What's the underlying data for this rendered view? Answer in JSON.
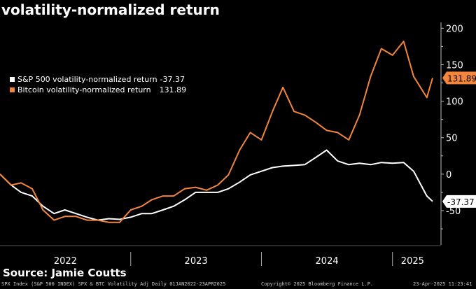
{
  "chart_data": {
    "type": "line",
    "title": "volatility-normalized return",
    "x_tick_labels": [
      "2022",
      "2023",
      "2024",
      "2025"
    ],
    "y_ticks": [
      -50,
      0,
      50,
      100,
      150,
      200
    ],
    "ylim": [
      -97,
      208
    ],
    "xlim": [
      "2022-01-01",
      "2025-04-23"
    ],
    "grid": false,
    "legend": "left",
    "x": [
      "2022-01",
      "2022-02",
      "2022-03",
      "2022-04",
      "2022-05",
      "2022-06",
      "2022-07",
      "2022-08",
      "2022-09",
      "2022-10",
      "2022-11",
      "2022-12",
      "2023-01",
      "2023-02",
      "2023-03",
      "2023-04",
      "2023-05",
      "2023-06",
      "2023-07",
      "2023-08",
      "2023-09",
      "2023-10",
      "2023-11",
      "2023-12",
      "2024-01",
      "2024-02",
      "2024-03",
      "2024-04",
      "2024-05",
      "2024-06",
      "2024-07",
      "2024-08",
      "2024-09",
      "2024-10",
      "2024-11",
      "2024-12",
      "2025-01",
      "2025-02",
      "2025-03",
      "2025-04-07",
      "2025-04-23"
    ],
    "series": [
      {
        "name": "S&P 500 volatility-normalized return",
        "last": "-37.37",
        "color": "#ffffff",
        "values": [
          0,
          -15,
          -25,
          -30,
          -44,
          -54,
          -49,
          -54,
          -59,
          -63,
          -61,
          -62,
          -59,
          -54,
          -54,
          -49,
          -44,
          -35,
          -25,
          -25,
          -25,
          -20,
          -11,
          -1,
          4,
          9,
          11,
          12,
          13,
          23,
          33,
          18,
          13,
          15,
          13,
          16,
          15,
          16,
          4,
          -30,
          -37.37
        ]
      },
      {
        "name": "Bitcoin volatility-normalized return",
        "last": "131.89",
        "color": "#f4863b",
        "values": [
          0,
          -15,
          -12,
          -20,
          -49,
          -63,
          -58,
          -58,
          -63,
          -63,
          -66,
          -66,
          -49,
          -44,
          -35,
          -30,
          -30,
          -20,
          -18,
          -22,
          -15,
          -1,
          33,
          57,
          47,
          86,
          119,
          86,
          81,
          71,
          60,
          57,
          47,
          81,
          134,
          172,
          163,
          182,
          134,
          105,
          131.89
        ]
      }
    ]
  },
  "source": "Source: Jamie Coutts",
  "footer": {
    "left": "SPX Index (S&P 500 INDEX) SPX & BTC Volatility Adj  Daily 01JAN2022-23APR2025",
    "center": "Copyright© 2025 Bloomberg Finance L.P.",
    "right": "23-Apr-2025 11:23:41"
  }
}
